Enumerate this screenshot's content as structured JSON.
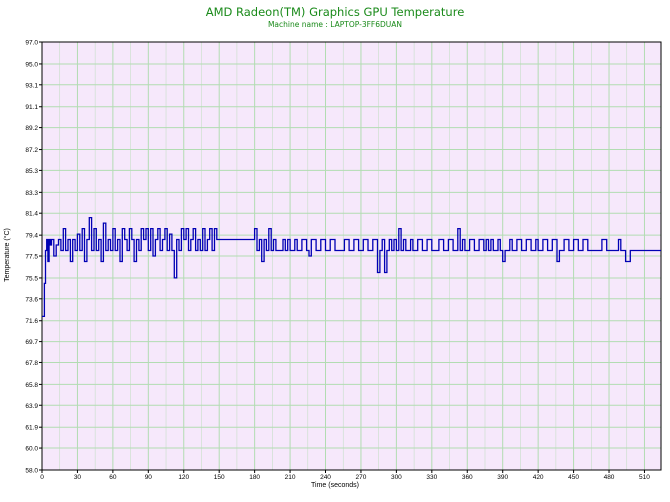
{
  "chart_data": {
    "type": "line",
    "title": "AMD Radeon(TM) Graphics GPU Temperature",
    "subtitle": "Machine name : LAPTOP-3FF6DUAN",
    "xlabel": "Time (seconds)",
    "ylabel": "Temperature (°C)",
    "xlim": [
      0,
      524
    ],
    "ylim": [
      58.0,
      97.0
    ],
    "x_ticks": [
      0,
      30,
      60,
      90,
      120,
      150,
      180,
      210,
      240,
      270,
      300,
      330,
      360,
      390,
      420,
      450,
      480,
      510
    ],
    "y_ticks": [
      "58.0",
      "60.0",
      "61.9",
      "63.9",
      "65.8",
      "67.8",
      "69.7",
      "71.6",
      "73.6",
      "75.5",
      "77.5",
      "79.4",
      "81.4",
      "83.3",
      "85.3",
      "87.2",
      "89.2",
      "91.1",
      "93.1",
      "95.0",
      "97.0"
    ],
    "grid": true,
    "background_color": "#f6e8fb",
    "grid_color": "#b2dcb2",
    "line_color": "#0000b4",
    "series": [
      {
        "values": [
          [
            0,
            72.0
          ],
          [
            1,
            72.0
          ],
          [
            2,
            75.0
          ],
          [
            3,
            78.0
          ],
          [
            4,
            79.0
          ],
          [
            5,
            77.0
          ],
          [
            6,
            79.0
          ],
          [
            7,
            78.5
          ],
          [
            8,
            79.0
          ],
          [
            10,
            77.5
          ],
          [
            12,
            78.5
          ],
          [
            14,
            79.0
          ],
          [
            16,
            78.0
          ],
          [
            18,
            80.0
          ],
          [
            20,
            78.0
          ],
          [
            22,
            79.0
          ],
          [
            24,
            77.0
          ],
          [
            26,
            79.0
          ],
          [
            28,
            78.0
          ],
          [
            30,
            79.5
          ],
          [
            32,
            78.0
          ],
          [
            34,
            80.0
          ],
          [
            36,
            77.0
          ],
          [
            38,
            79.0
          ],
          [
            40,
            81.0
          ],
          [
            42,
            78.0
          ],
          [
            44,
            80.0
          ],
          [
            46,
            78.0
          ],
          [
            48,
            79.0
          ],
          [
            50,
            77.0
          ],
          [
            52,
            80.5
          ],
          [
            54,
            78.0
          ],
          [
            56,
            79.0
          ],
          [
            58,
            78.0
          ],
          [
            60,
            80.0
          ],
          [
            62,
            78.0
          ],
          [
            64,
            79.0
          ],
          [
            66,
            77.0
          ],
          [
            68,
            80.0
          ],
          [
            70,
            79.0
          ],
          [
            72,
            78.0
          ],
          [
            74,
            80.0
          ],
          [
            76,
            79.0
          ],
          [
            78,
            77.0
          ],
          [
            80,
            79.0
          ],
          [
            82,
            78.0
          ],
          [
            84,
            80.0
          ],
          [
            86,
            79.0
          ],
          [
            88,
            80.0
          ],
          [
            90,
            78.0
          ],
          [
            92,
            80.0
          ],
          [
            94,
            77.5
          ],
          [
            96,
            79.0
          ],
          [
            98,
            80.0
          ],
          [
            100,
            78.0
          ],
          [
            102,
            79.0
          ],
          [
            104,
            80.0
          ],
          [
            106,
            78.0
          ],
          [
            108,
            79.5
          ],
          [
            110,
            78.0
          ],
          [
            112,
            75.5
          ],
          [
            114,
            79.0
          ],
          [
            116,
            78.0
          ],
          [
            118,
            80.0
          ],
          [
            120,
            79.0
          ],
          [
            122,
            80.0
          ],
          [
            124,
            78.0
          ],
          [
            126,
            79.0
          ],
          [
            128,
            80.0
          ],
          [
            130,
            78.0
          ],
          [
            132,
            79.0
          ],
          [
            134,
            78.0
          ],
          [
            136,
            80.0
          ],
          [
            138,
            78.0
          ],
          [
            140,
            79.0
          ],
          [
            142,
            80.0
          ],
          [
            144,
            78.0
          ],
          [
            146,
            80.0
          ],
          [
            148,
            79.0
          ],
          [
            150,
            79.0
          ],
          [
            160,
            79.0
          ],
          [
            170,
            79.0
          ],
          [
            175,
            79.0
          ],
          [
            180,
            80.0
          ],
          [
            182,
            78.0
          ],
          [
            184,
            79.0
          ],
          [
            186,
            77.0
          ],
          [
            188,
            79.0
          ],
          [
            190,
            78.0
          ],
          [
            192,
            80.0
          ],
          [
            194,
            78.0
          ],
          [
            196,
            79.0
          ],
          [
            198,
            78.0
          ],
          [
            200,
            78.0
          ],
          [
            204,
            79.0
          ],
          [
            206,
            78.0
          ],
          [
            208,
            79.0
          ],
          [
            210,
            78.0
          ],
          [
            214,
            79.0
          ],
          [
            216,
            78.0
          ],
          [
            220,
            79.0
          ],
          [
            224,
            78.0
          ],
          [
            226,
            77.5
          ],
          [
            228,
            79.0
          ],
          [
            232,
            78.0
          ],
          [
            236,
            79.0
          ],
          [
            240,
            78.0
          ],
          [
            244,
            79.0
          ],
          [
            248,
            78.0
          ],
          [
            252,
            78.0
          ],
          [
            256,
            79.0
          ],
          [
            260,
            78.0
          ],
          [
            264,
            79.0
          ],
          [
            268,
            78.0
          ],
          [
            272,
            79.0
          ],
          [
            276,
            78.0
          ],
          [
            280,
            79.0
          ],
          [
            284,
            76.0
          ],
          [
            286,
            78.0
          ],
          [
            288,
            79.0
          ],
          [
            290,
            76.0
          ],
          [
            292,
            78.0
          ],
          [
            294,
            79.0
          ],
          [
            296,
            78.0
          ],
          [
            298,
            79.0
          ],
          [
            300,
            78.0
          ],
          [
            302,
            80.0
          ],
          [
            304,
            78.0
          ],
          [
            306,
            79.0
          ],
          [
            308,
            78.0
          ],
          [
            310,
            78.0
          ],
          [
            312,
            79.0
          ],
          [
            314,
            78.0
          ],
          [
            318,
            79.0
          ],
          [
            322,
            78.0
          ],
          [
            326,
            79.0
          ],
          [
            330,
            78.0
          ],
          [
            336,
            79.0
          ],
          [
            340,
            78.0
          ],
          [
            344,
            79.0
          ],
          [
            348,
            78.0
          ],
          [
            352,
            80.0
          ],
          [
            354,
            78.0
          ],
          [
            356,
            79.0
          ],
          [
            358,
            78.0
          ],
          [
            362,
            79.0
          ],
          [
            366,
            78.0
          ],
          [
            370,
            79.0
          ],
          [
            374,
            78.0
          ],
          [
            376,
            79.0
          ],
          [
            378,
            78.0
          ],
          [
            380,
            79.0
          ],
          [
            382,
            78.0
          ],
          [
            386,
            79.0
          ],
          [
            388,
            78.0
          ],
          [
            390,
            77.0
          ],
          [
            392,
            78.0
          ],
          [
            396,
            79.0
          ],
          [
            398,
            78.0
          ],
          [
            402,
            79.0
          ],
          [
            406,
            78.0
          ],
          [
            410,
            79.0
          ],
          [
            414,
            78.0
          ],
          [
            418,
            79.0
          ],
          [
            420,
            78.0
          ],
          [
            424,
            79.0
          ],
          [
            428,
            78.0
          ],
          [
            432,
            79.0
          ],
          [
            436,
            77.0
          ],
          [
            438,
            78.0
          ],
          [
            442,
            79.0
          ],
          [
            446,
            78.0
          ],
          [
            450,
            79.0
          ],
          [
            454,
            78.0
          ],
          [
            458,
            79.0
          ],
          [
            462,
            78.0
          ],
          [
            466,
            78.0
          ],
          [
            470,
            78.0
          ],
          [
            474,
            79.0
          ],
          [
            478,
            78.0
          ],
          [
            484,
            78.0
          ],
          [
            488,
            79.0
          ],
          [
            490,
            78.0
          ],
          [
            494,
            77.0
          ],
          [
            498,
            78.0
          ],
          [
            504,
            78.0
          ],
          [
            510,
            78.0
          ],
          [
            516,
            78.0
          ],
          [
            524,
            78.0
          ]
        ]
      }
    ]
  }
}
